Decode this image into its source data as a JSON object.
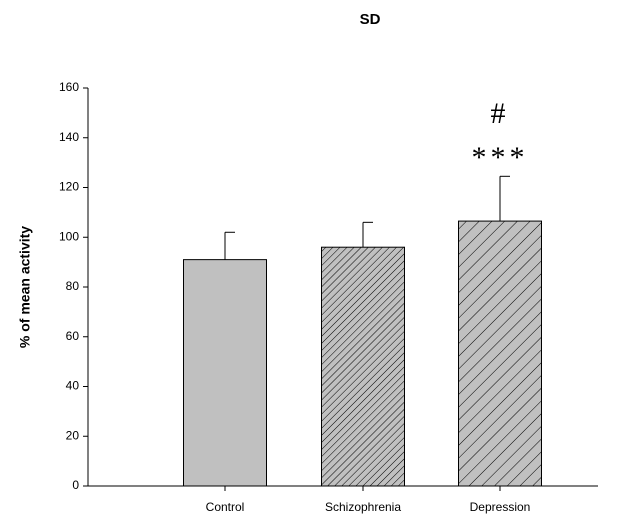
{
  "chart_data": {
    "type": "bar",
    "title": "SD",
    "y_label": "% of mean activity",
    "categories": [
      "Control",
      "Schizophrenia",
      "Depression"
    ],
    "values": [
      91,
      96,
      106.5
    ],
    "errors": [
      11,
      10,
      18
    ],
    "color": "#c0c0c0",
    "hatch": [
      "none",
      "dense",
      "sparse"
    ],
    "ylim": [
      0,
      160
    ],
    "yticks": [
      0,
      20,
      40,
      60,
      80,
      100,
      120,
      140,
      160
    ],
    "annotations": [
      {
        "text": "#",
        "category": "Depression"
      },
      {
        "text": "***",
        "category": "Depression"
      }
    ]
  }
}
